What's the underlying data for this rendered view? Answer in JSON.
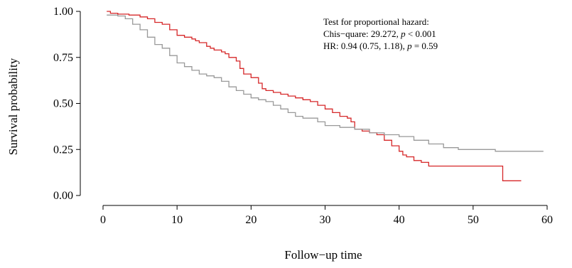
{
  "chart_data": {
    "type": "line",
    "subtype": "step",
    "xlabel": "Follow−up time",
    "ylabel": "Survival probability",
    "xlim": [
      0,
      60
    ],
    "ylim": [
      0,
      1
    ],
    "x_ticks": [
      0,
      10,
      20,
      30,
      40,
      50,
      60
    ],
    "x_tick_labels": [
      "0",
      "10",
      "20",
      "30",
      "40",
      "50",
      "60"
    ],
    "y_ticks": [
      0,
      0.25,
      0.5,
      0.75,
      1
    ],
    "y_tick_labels": [
      "0.00",
      "0.25",
      "0.50",
      "0.75",
      "1.00"
    ],
    "grid": false,
    "annotation": {
      "line1": "Test for proportional hazard:",
      "line2_text": "Chis−quare: 29.272, ",
      "line2_p": "p",
      "line2_rest": " < 0.001",
      "line3_text": "HR: 0.94 (0.75, 1.18), ",
      "line3_p": "p",
      "line3_rest": " = 0.59"
    },
    "series": [
      {
        "color": "#d62728",
        "points": [
          [
            0.5,
            1.0
          ],
          [
            1.0,
            0.99
          ],
          [
            2.0,
            0.985
          ],
          [
            3.5,
            0.98
          ],
          [
            5.0,
            0.97
          ],
          [
            6.0,
            0.96
          ],
          [
            7.0,
            0.94
          ],
          [
            8.0,
            0.93
          ],
          [
            9.0,
            0.9
          ],
          [
            10.0,
            0.87
          ],
          [
            11.0,
            0.86
          ],
          [
            12.0,
            0.85
          ],
          [
            12.5,
            0.84
          ],
          [
            13.0,
            0.83
          ],
          [
            14.0,
            0.81
          ],
          [
            14.5,
            0.8
          ],
          [
            15.0,
            0.79
          ],
          [
            16.0,
            0.78
          ],
          [
            16.5,
            0.77
          ],
          [
            17.0,
            0.75
          ],
          [
            18.0,
            0.73
          ],
          [
            18.5,
            0.69
          ],
          [
            19.0,
            0.66
          ],
          [
            20.0,
            0.64
          ],
          [
            21.0,
            0.61
          ],
          [
            21.5,
            0.58
          ],
          [
            22.0,
            0.57
          ],
          [
            23.0,
            0.56
          ],
          [
            24.0,
            0.55
          ],
          [
            25.0,
            0.54
          ],
          [
            26.0,
            0.53
          ],
          [
            27.0,
            0.52
          ],
          [
            28.0,
            0.51
          ],
          [
            29.0,
            0.49
          ],
          [
            30.0,
            0.47
          ],
          [
            31.0,
            0.45
          ],
          [
            32.0,
            0.43
          ],
          [
            33.0,
            0.42
          ],
          [
            33.5,
            0.4
          ],
          [
            34.0,
            0.36
          ],
          [
            35.0,
            0.35
          ],
          [
            36.0,
            0.34
          ],
          [
            37.0,
            0.33
          ],
          [
            38.0,
            0.3
          ],
          [
            39.0,
            0.27
          ],
          [
            40.0,
            0.24
          ],
          [
            40.5,
            0.22
          ],
          [
            41.0,
            0.21
          ],
          [
            42.0,
            0.19
          ],
          [
            43.0,
            0.18
          ],
          [
            44.0,
            0.16
          ],
          [
            48.0,
            0.16
          ],
          [
            54.0,
            0.08
          ],
          [
            56.5,
            0.08
          ]
        ]
      },
      {
        "color": "#999999",
        "points": [
          [
            0.5,
            0.98
          ],
          [
            2.0,
            0.975
          ],
          [
            3.0,
            0.96
          ],
          [
            4.0,
            0.93
          ],
          [
            5.0,
            0.9
          ],
          [
            6.0,
            0.86
          ],
          [
            7.0,
            0.82
          ],
          [
            8.0,
            0.8
          ],
          [
            9.0,
            0.76
          ],
          [
            10.0,
            0.72
          ],
          [
            11.0,
            0.7
          ],
          [
            12.0,
            0.68
          ],
          [
            13.0,
            0.66
          ],
          [
            14.0,
            0.65
          ],
          [
            15.0,
            0.64
          ],
          [
            16.0,
            0.62
          ],
          [
            17.0,
            0.59
          ],
          [
            18.0,
            0.57
          ],
          [
            19.0,
            0.55
          ],
          [
            20.0,
            0.53
          ],
          [
            21.0,
            0.52
          ],
          [
            22.0,
            0.51
          ],
          [
            23.0,
            0.49
          ],
          [
            24.0,
            0.47
          ],
          [
            25.0,
            0.45
          ],
          [
            26.0,
            0.43
          ],
          [
            27.0,
            0.42
          ],
          [
            29.0,
            0.4
          ],
          [
            30.0,
            0.38
          ],
          [
            32.0,
            0.37
          ],
          [
            34.0,
            0.36
          ],
          [
            36.0,
            0.34
          ],
          [
            38.0,
            0.33
          ],
          [
            40.0,
            0.32
          ],
          [
            42.0,
            0.3
          ],
          [
            44.0,
            0.28
          ],
          [
            46.0,
            0.26
          ],
          [
            48.0,
            0.25
          ],
          [
            53.0,
            0.24
          ],
          [
            59.5,
            0.24
          ]
        ]
      }
    ]
  }
}
